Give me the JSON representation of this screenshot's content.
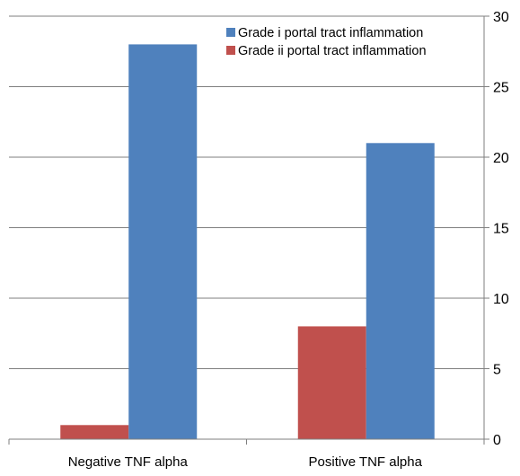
{
  "chart_data": {
    "type": "bar",
    "categories": [
      "Negative TNF alpha",
      "Positive TNF alpha"
    ],
    "series": [
      {
        "name": "Grade ii portal tract inflammation",
        "values": [
          1,
          8
        ],
        "color": "#c0504d"
      },
      {
        "name": "Grade i portal tract inflammation",
        "values": [
          28,
          21
        ],
        "color": "#4f81bd"
      }
    ],
    "legend_order": [
      1,
      0
    ],
    "y_axis": {
      "min": 0,
      "max": 30,
      "step": 5,
      "position": "right"
    },
    "ticks": [
      "0",
      "5",
      "10",
      "15",
      "20",
      "25",
      "30"
    ],
    "grid": true,
    "legend_position": "top-right"
  }
}
